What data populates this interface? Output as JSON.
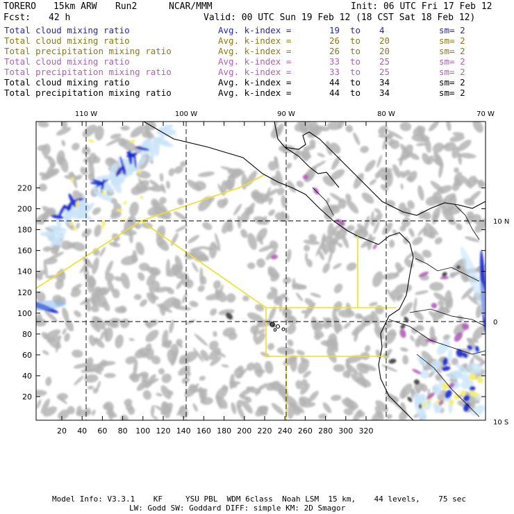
{
  "header": {
    "model": "TORERO",
    "resolution": "15km ARW",
    "run": "Run2",
    "org": "NCAR/MMM",
    "init": "Init: 06 UTC Fri 17 Feb 12",
    "fcst_label": "Fcst:",
    "fcst_value": "42 h",
    "valid": "Valid: 00 UTC Sun 19 Feb 12 (18 CST Sat 18 Feb 12)"
  },
  "legend": [
    {
      "field": "Total cloud mixing ratio",
      "avg": "Avg. k-index =",
      "from": "19",
      "to_word": "to",
      "to": "4",
      "sm": "sm= 2",
      "color": "#1f1fd6"
    },
    {
      "field": "Total cloud mixing ratio",
      "avg": "Avg. k-index =",
      "from": "26",
      "to_word": "to",
      "to": "20",
      "sm": "sm= 2",
      "color": "#8a7a10"
    },
    {
      "field": "Total precipitation mixing ratio",
      "avg": "Avg. k-index =",
      "from": "26",
      "to_word": "to",
      "to": "20",
      "sm": "sm= 2",
      "color": "#8a7a10"
    },
    {
      "field": "Total cloud mixing ratio",
      "avg": "Avg. k-index =",
      "from": "33",
      "to_word": "to",
      "to": "25",
      "sm": "sm= 2",
      "color": "#b060b8"
    },
    {
      "field": "Total precipitation mixing ratio",
      "avg": "Avg. k-index =",
      "from": "33",
      "to_word": "to",
      "to": "25",
      "sm": "sm= 2",
      "color": "#b060b8"
    },
    {
      "field": "Total cloud mixing ratio",
      "avg": "Avg. k-index =",
      "from": "44",
      "to_word": "to",
      "to": "34",
      "sm": "sm= 2",
      "color": "#000000"
    },
    {
      "field": "Total precipitation mixing ratio",
      "avg": "Avg. k-index =",
      "from": "44",
      "to_word": "to",
      "to": "34",
      "sm": "sm= 2",
      "color": "#000000"
    }
  ],
  "map": {
    "lon_labels": [
      "110 W",
      "100 W",
      "90 W",
      "80 W",
      "70 W"
    ],
    "lat_labels": [
      "10 N",
      "0",
      "10 S"
    ],
    "x_ticks": [
      "20",
      "40",
      "60",
      "80",
      "100",
      "120",
      "140",
      "160",
      "180",
      "200",
      "220",
      "240",
      "260",
      "280",
      "300",
      "320"
    ],
    "y_ticks": [
      "20",
      "40",
      "60",
      "80",
      "100",
      "120",
      "140",
      "160",
      "180",
      "200",
      "220"
    ],
    "colors": {
      "cloud_gray": "#b4b4b4",
      "light_blue": "#c8e4f8",
      "mid_blue": "#7fb2ea",
      "deep_blue": "#1a2ad0",
      "yellow": "#f4ef6a",
      "purple": "#b060b8",
      "dark": "#3c3c3c",
      "boundary_yellow": "#f0e020"
    }
  },
  "footer": {
    "line1": "Model Info: V3.3.1    KF     YSU PBL  WDM 6class  Noah LSM  15 km,    44 levels,    75 sec",
    "line2": "LW: Godd SW: Goddard DIFF: simple KM: 2D Smagor"
  }
}
